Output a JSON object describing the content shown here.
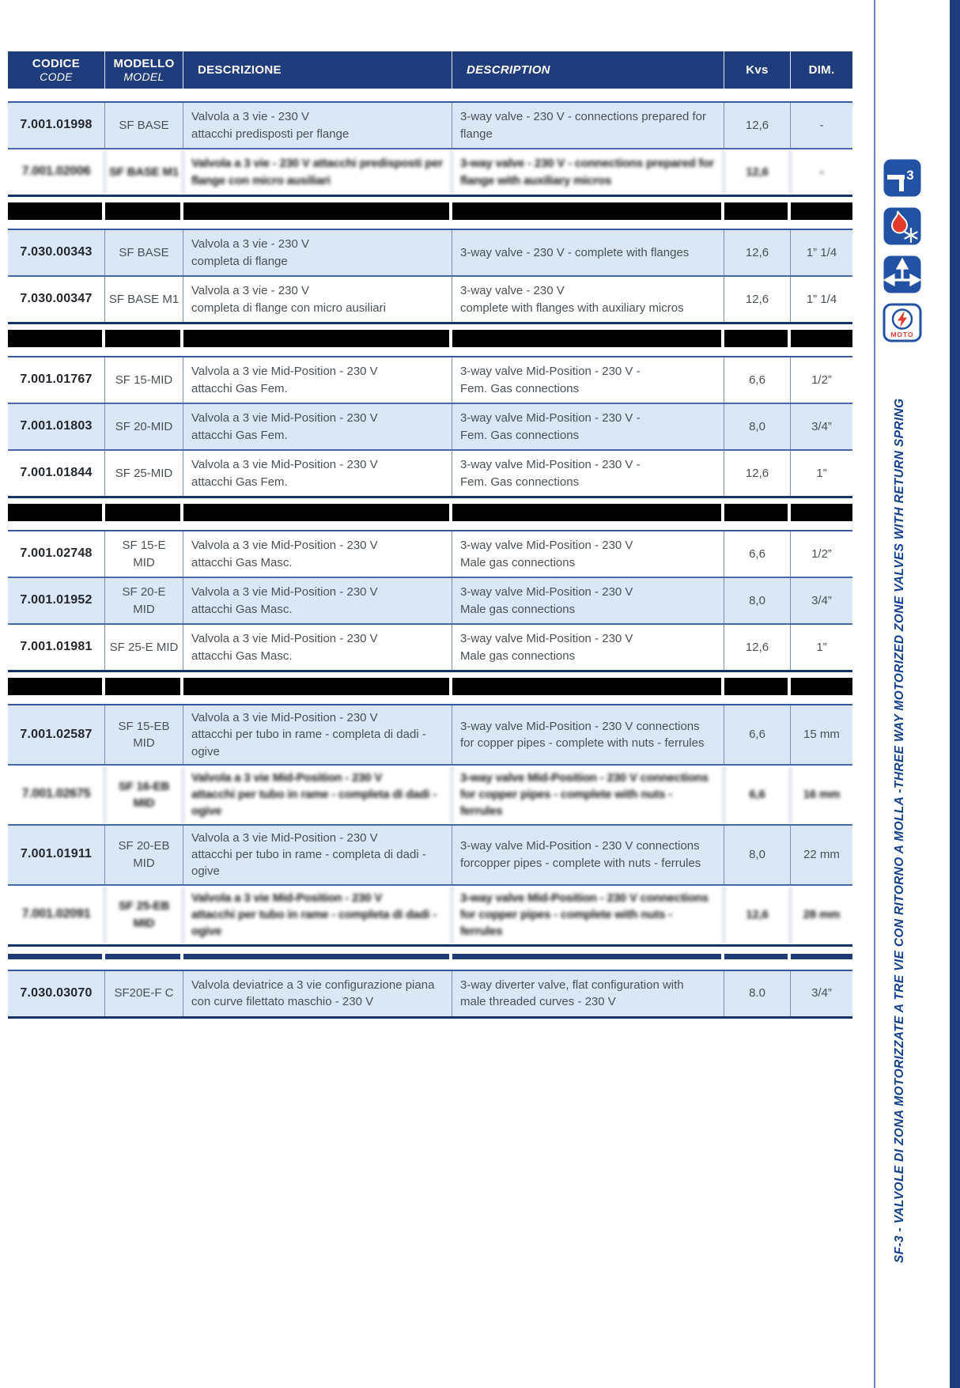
{
  "table": {
    "header": [
      {
        "lines": [
          "CODICE",
          "CODE"
        ]
      },
      {
        "lines": [
          "MODELLO",
          "MODEL"
        ]
      },
      {
        "lines": [
          "DESCRIZIONE"
        ]
      },
      {
        "lines": [
          "DESCRIPTION"
        ]
      },
      {
        "lines": [
          "Kvs"
        ]
      },
      {
        "lines": [
          "DIM."
        ]
      }
    ],
    "groups": [
      {
        "separator_after": "black",
        "rows": [
          {
            "code": "7.001.01998",
            "model": [
              "SF BASE"
            ],
            "desc_it": [
              "Valvola a 3 vie - 230 V",
              "attacchi predisposti per flange"
            ],
            "desc_en": [
              "3-way valve - 230 V - connections prepared for",
              "flange"
            ],
            "kvs": "12,6",
            "dim": "-",
            "shade": "blue",
            "degraded": false
          },
          {
            "code": "7.001.02006",
            "model": [
              "SF BASE M1"
            ],
            "desc_it": [
              "Valvola a 3 vie - 230 V attacchi predisposti per",
              "flange con micro ausiliari"
            ],
            "desc_en": [
              "3-way valve - 230 V - connections prepared for",
              "flange with auxiliary micros"
            ],
            "kvs": "12,6",
            "dim": "-",
            "shade": "white",
            "degraded": true
          }
        ]
      },
      {
        "separator_after": "black",
        "rows": [
          {
            "code": "7.030.00343",
            "model": [
              "SF BASE"
            ],
            "desc_it": [
              "Valvola a 3 vie - 230 V",
              "completa di flange"
            ],
            "desc_en": [
              "3-way valve - 230 V - complete with flanges"
            ],
            "kvs": "12,6",
            "dim": "1” 1/4",
            "shade": "blue",
            "degraded": false
          },
          {
            "code": "7.030.00347",
            "model": [
              "SF BASE M1"
            ],
            "desc_it": [
              "Valvola a 3 vie - 230 V",
              "completa di flange con micro ausiliari"
            ],
            "desc_en": [
              "3-way valve - 230 V",
              "complete with flanges with auxiliary micros"
            ],
            "kvs": "12,6",
            "dim": "1” 1/4",
            "shade": "white",
            "degraded": false
          }
        ]
      },
      {
        "separator_after": "black",
        "rows": [
          {
            "code": "7.001.01767",
            "model": [
              "SF 15-MID"
            ],
            "desc_it": [
              "Valvola a 3 vie Mid-Position - 230 V",
              "attacchi Gas Fem."
            ],
            "desc_en": [
              "3-way valve Mid-Position - 230 V -",
              "Fem. Gas connections"
            ],
            "kvs": "6,6",
            "dim": "1/2”",
            "shade": "white",
            "degraded": false
          },
          {
            "code": "7.001.01803",
            "model": [
              "SF 20-MID"
            ],
            "desc_it": [
              "Valvola a 3 vie Mid-Position - 230 V",
              "attacchi Gas Fem."
            ],
            "desc_en": [
              "3-way valve Mid-Position - 230 V -",
              "Fem. Gas connections"
            ],
            "kvs": "8,0",
            "dim": "3/4”",
            "shade": "blue",
            "degraded": false
          },
          {
            "code": "7.001.01844",
            "model": [
              "SF 25-MID"
            ],
            "desc_it": [
              "Valvola a 3 vie Mid-Position - 230 V",
              "attacchi Gas Fem."
            ],
            "desc_en": [
              "3-way valve Mid-Position - 230 V -",
              "Fem. Gas connections"
            ],
            "kvs": "12,6",
            "dim": "1”",
            "shade": "white",
            "degraded": false
          }
        ]
      },
      {
        "separator_after": "black",
        "rows": [
          {
            "code": "7.001.02748",
            "model": [
              "SF 15-E",
              "MID"
            ],
            "desc_it": [
              "Valvola a 3 vie Mid-Position - 230 V",
              "attacchi Gas Masc."
            ],
            "desc_en": [
              "3-way valve Mid-Position - 230 V",
              "Male gas connections"
            ],
            "kvs": "6,6",
            "dim": "1/2”",
            "shade": "white",
            "degraded": false
          },
          {
            "code": "7.001.01952",
            "model": [
              "SF 20-E",
              "MID"
            ],
            "desc_it": [
              "Valvola a 3 vie Mid-Position - 230 V",
              "attacchi Gas Masc."
            ],
            "desc_en": [
              "3-way valve Mid-Position - 230 V",
              "Male gas connections"
            ],
            "kvs": "8,0",
            "dim": "3/4”",
            "shade": "blue",
            "degraded": false
          },
          {
            "code": "7.001.01981",
            "model": [
              "SF 25-E MID"
            ],
            "desc_it": [
              "Valvola a 3 vie Mid-Position - 230 V",
              "attacchi Gas Masc."
            ],
            "desc_en": [
              "3-way valve Mid-Position - 230 V",
              "Male gas connections"
            ],
            "kvs": "12,6",
            "dim": "1”",
            "shade": "white",
            "degraded": false
          }
        ]
      },
      {
        "separator_after": "navy",
        "rows": [
          {
            "code": "7.001.02587",
            "model": [
              "SF 15-EB",
              "MID"
            ],
            "desc_it": [
              "Valvola a 3 vie Mid-Position - 230 V",
              "attacchi per tubo in rame - completa di dadi - ogive"
            ],
            "desc_en": [
              "3-way valve Mid-Position - 230 V connections",
              "for copper pipes - complete with nuts - ferrules"
            ],
            "kvs": "6,6",
            "dim": "15 mm",
            "shade": "blue",
            "degraded": false
          },
          {
            "code": "7.001.02675",
            "model": [
              "SF 16-EB",
              "MID"
            ],
            "desc_it": [
              "Valvola a 3 vie Mid-Position - 230 V",
              "attacchi per tubo in rame - completa di dadi - ogive"
            ],
            "desc_en": [
              "3-way valve Mid-Position - 230 V connections",
              "for copper pipes - complete with nuts - ferrules"
            ],
            "kvs": "6,6",
            "dim": "16 mm",
            "shade": "white",
            "degraded": true
          },
          {
            "code": "7.001.01911",
            "model": [
              "SF 20-EB",
              "MID"
            ],
            "desc_it": [
              "Valvola a 3 vie Mid-Position - 230 V",
              "attacchi per tubo in rame - completa di dadi - ogive"
            ],
            "desc_en": [
              "3-way valve Mid-Position - 230 V connections",
              "forcopper pipes - complete with nuts - ferrules"
            ],
            "kvs": "8,0",
            "dim": "22 mm",
            "shade": "blue",
            "degraded": false
          },
          {
            "code": "7.001.02091",
            "model": [
              "SF 25-EB",
              "MID"
            ],
            "desc_it": [
              "Valvola a 3 vie Mid-Position - 230 V",
              "attacchi per tubo in rame - completa di dadi - ogive"
            ],
            "desc_en": [
              "3-way valve Mid-Position - 230 V connections",
              "for copper pipes - complete with nuts - ferrules"
            ],
            "kvs": "12,6",
            "dim": "28 mm",
            "shade": "white",
            "degraded": true
          }
        ]
      },
      {
        "separator_after": "none",
        "rows": [
          {
            "code": "7.030.03070",
            "model": [
              "SF20E-F C"
            ],
            "desc_it": [
              "Valvola deviatrice a 3 vie configurazione piana",
              "con curve filettato maschio - 230 V"
            ],
            "desc_en": [
              "3-way diverter valve, flat configuration with",
              "male threaded curves - 230 V"
            ],
            "kvs": "8.0",
            "dim": "3/4”",
            "shade": "blue",
            "degraded": false
          }
        ]
      }
    ]
  },
  "sidebar": {
    "icons": [
      {
        "name": "three-way-valve",
        "label": "3"
      },
      {
        "name": "heating-cooling",
        "label": ""
      },
      {
        "name": "flow-directions",
        "label": ""
      },
      {
        "name": "motorized",
        "label": "MOTO"
      }
    ],
    "title_it": "SF-3 -  VALVOLE DI ZONA MOTORIZZATE A TRE VIE CON RITORNO A MOLLA  - ",
    "title_en": " THREE WAY MOTORIZED ZONE VALVES WITH RETURN SPRING"
  },
  "colors": {
    "header_navy": "#1f3d7c",
    "row_blue": "#d9e7f6",
    "accent_blue": "#14418f",
    "band_black": "#000000",
    "red_accent": "#e23b2e"
  }
}
